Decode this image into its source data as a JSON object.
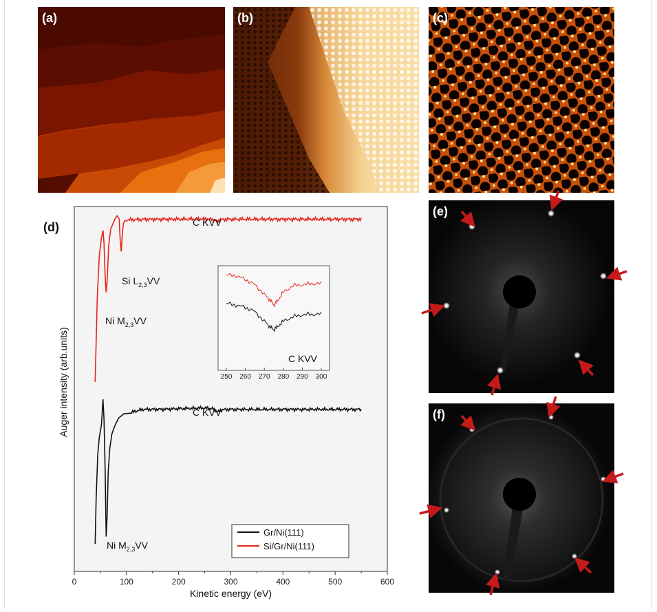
{
  "panels": {
    "a": "(a)",
    "b": "(b)",
    "c": "(c)",
    "d": "(d)",
    "e": "(e)",
    "f": "(f)"
  },
  "colors": {
    "red": "#e8231c",
    "black": "#111111",
    "arrow": "#c41a1a",
    "plot_bg": "#f4f4f4"
  },
  "chart_data": {
    "type": "line",
    "xlabel": "Kinetic energy (eV)",
    "ylabel": "Auger intensity (arb.units)",
    "xlim": [
      0,
      600
    ],
    "xticks": [
      "0",
      "100",
      "200",
      "300",
      "400",
      "500",
      "600"
    ],
    "legend": {
      "placement": "bottom-right",
      "entries": [
        "Gr/Ni(111)",
        "Si/Gr/Ni(111)"
      ]
    },
    "series": [
      {
        "name": "Si/Gr/Ni(111)",
        "color": "#e8231c",
        "x": [
          40,
          44,
          48,
          52,
          55,
          57,
          59,
          61,
          63,
          66,
          70,
          74,
          78,
          82,
          86,
          88,
          90,
          92,
          94,
          97,
          100,
          110,
          130,
          160,
          200,
          250,
          265,
          270,
          275,
          280,
          290,
          320,
          380,
          450,
          500,
          550
        ],
        "y": [
          0.0,
          0.52,
          0.78,
          0.88,
          0.93,
          0.85,
          0.66,
          0.55,
          0.62,
          0.84,
          0.94,
          0.97,
          1.0,
          1.02,
          1.0,
          0.87,
          0.8,
          0.91,
          0.97,
          0.99,
          0.995,
          0.995,
          0.997,
          0.998,
          0.998,
          1.0,
          0.997,
          0.99,
          0.985,
          0.995,
          0.998,
          0.998,
          0.998,
          0.998,
          0.998,
          0.998
        ]
      },
      {
        "name": "Gr/Ni(111)",
        "color": "#111111",
        "x": [
          40,
          42,
          45,
          48,
          52,
          55,
          57,
          59,
          61,
          63,
          65,
          68,
          72,
          78,
          85,
          95,
          110,
          130,
          160,
          200,
          250,
          265,
          270,
          275,
          280,
          290,
          320,
          380,
          450,
          500,
          550
        ],
        "y": [
          0.0,
          0.32,
          0.62,
          0.74,
          0.82,
          1.0,
          0.86,
          0.55,
          0.05,
          0.2,
          0.5,
          0.66,
          0.76,
          0.82,
          0.87,
          0.9,
          0.91,
          0.93,
          0.93,
          0.935,
          0.94,
          0.935,
          0.925,
          0.91,
          0.925,
          0.93,
          0.93,
          0.93,
          0.93,
          0.93,
          0.93
        ]
      }
    ],
    "annotations": [
      {
        "text": "C KVV",
        "series": "Si/Gr/Ni(111)",
        "x": 275
      },
      {
        "text": "Si L",
        "sub": "2,3",
        "tail": "VV",
        "series": "Si/Gr/Ni(111)",
        "x": 92
      },
      {
        "text": "Ni M",
        "sub": "2,3",
        "tail": "VV",
        "series": "Si/Gr/Ni(111)",
        "x": 62
      },
      {
        "text": "C KVV",
        "series": "Gr/Ni(111)",
        "x": 275
      },
      {
        "text": "Ni M",
        "sub": "2,3",
        "tail": "VV",
        "series": "Gr/Ni(111)",
        "x": 62
      }
    ],
    "inset": {
      "xlim": [
        248,
        302
      ],
      "xticks": [
        "250",
        "260",
        "270",
        "280",
        "290",
        "300"
      ],
      "label": "C KVV",
      "series": [
        {
          "name": "Si/Gr/Ni(111)",
          "color": "#e8231c",
          "x": [
            250,
            255,
            260,
            265,
            270,
            273,
            275,
            277,
            280,
            285,
            290,
            295,
            300
          ],
          "y": [
            0.98,
            0.97,
            0.9,
            0.8,
            0.62,
            0.52,
            0.42,
            0.5,
            0.66,
            0.78,
            0.8,
            0.82,
            0.82
          ]
        },
        {
          "name": "Gr/Ni(111)",
          "color": "#111111",
          "x": [
            250,
            255,
            260,
            265,
            270,
            273,
            275,
            277,
            280,
            285,
            290,
            295,
            300
          ],
          "y": [
            0.45,
            0.42,
            0.38,
            0.3,
            0.12,
            0.02,
            -0.04,
            0.02,
            0.12,
            0.2,
            0.24,
            0.25,
            0.25
          ]
        }
      ]
    }
  }
}
